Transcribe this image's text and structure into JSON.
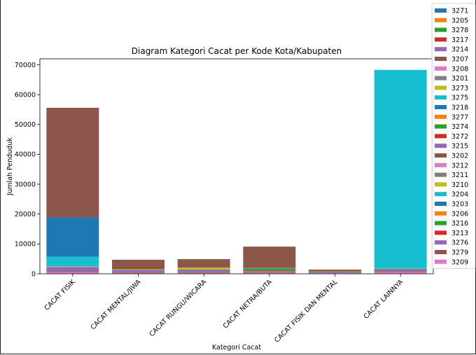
{
  "chart_data": {
    "type": "bar",
    "stacked": true,
    "title": "Diagram Kategori Cacat per Kode Kota/Kabupaten",
    "xlabel": "Kategori Cacat",
    "ylabel": "Jumlah Penduduk",
    "ylim": [
      0,
      72000
    ],
    "yticks": [
      0,
      10000,
      20000,
      30000,
      40000,
      50000,
      60000,
      70000
    ],
    "categories": [
      "CACAT FISIK",
      "CACAT MENTAL/JIWA",
      "CACAT RUNGU/WICARA",
      "CACAT NETRA/BUTA",
      "CACAT FISIK DAN MENTAL",
      "CACAT LAINNYA"
    ],
    "legend_position": "top-right",
    "grid": false,
    "series": [
      {
        "name": "3209",
        "color": "#e377c2",
        "values": [
          600,
          300,
          300,
          300,
          200,
          600
        ]
      },
      {
        "name": "3279",
        "color": "#8c564b",
        "values": [
          300,
          200,
          200,
          200,
          100,
          200
        ]
      },
      {
        "name": "3276",
        "color": "#9467bd",
        "values": [
          1400,
          700,
          800,
          400,
          300,
          700
        ]
      },
      {
        "name": "3213",
        "color": "#d62728",
        "values": [
          0,
          0,
          0,
          200,
          0,
          0
        ]
      },
      {
        "name": "3216",
        "color": "#2ca02c",
        "values": [
          0,
          100,
          100,
          700,
          100,
          200
        ]
      },
      {
        "name": "3206",
        "color": "#ff7f0e",
        "values": [
          0,
          0,
          0,
          0,
          0,
          0
        ]
      },
      {
        "name": "3210",
        "color": "#bcbd22",
        "values": [
          200,
          200,
          700,
          100,
          100,
          100
        ]
      },
      {
        "name": "3204",
        "color": "#17becf",
        "values": [
          3200,
          0,
          0,
          0,
          0,
          66500
        ]
      },
      {
        "name": "3203",
        "color": "#1f77b4",
        "values": [
          13200,
          0,
          0,
          0,
          0,
          0
        ]
      },
      {
        "name": "3202",
        "color": "#8c564b",
        "values": [
          36700,
          3200,
          2800,
          7200,
          600,
          0
        ]
      }
    ],
    "legend_entries": [
      {
        "name": "3271",
        "color": "#1f77b4"
      },
      {
        "name": "3205",
        "color": "#ff7f0e"
      },
      {
        "name": "3278",
        "color": "#2ca02c"
      },
      {
        "name": "3217",
        "color": "#d62728"
      },
      {
        "name": "3214",
        "color": "#9467bd"
      },
      {
        "name": "3207",
        "color": "#8c564b"
      },
      {
        "name": "3208",
        "color": "#e377c2"
      },
      {
        "name": "3201",
        "color": "#7f7f7f"
      },
      {
        "name": "3273",
        "color": "#bcbd22"
      },
      {
        "name": "3275",
        "color": "#17becf"
      },
      {
        "name": "3218",
        "color": "#1f77b4"
      },
      {
        "name": "3277",
        "color": "#ff7f0e"
      },
      {
        "name": "3274",
        "color": "#2ca02c"
      },
      {
        "name": "3272",
        "color": "#d62728"
      },
      {
        "name": "3215",
        "color": "#9467bd"
      },
      {
        "name": "3202",
        "color": "#8c564b"
      },
      {
        "name": "3212",
        "color": "#e377c2"
      },
      {
        "name": "3211",
        "color": "#7f7f7f"
      },
      {
        "name": "3210",
        "color": "#bcbd22"
      },
      {
        "name": "3204",
        "color": "#17becf"
      },
      {
        "name": "3203",
        "color": "#1f77b4"
      },
      {
        "name": "3206",
        "color": "#ff7f0e"
      },
      {
        "name": "3216",
        "color": "#2ca02c"
      },
      {
        "name": "3213",
        "color": "#d62728"
      },
      {
        "name": "3276",
        "color": "#9467bd"
      },
      {
        "name": "3279",
        "color": "#8c564b"
      },
      {
        "name": "3209",
        "color": "#e377c2"
      }
    ]
  }
}
